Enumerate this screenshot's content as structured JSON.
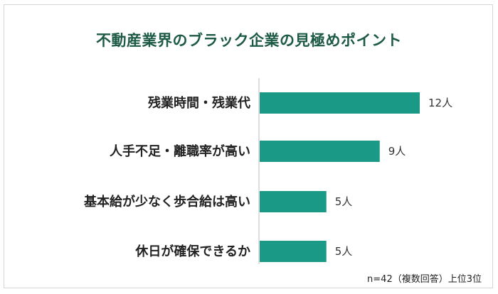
{
  "chart_data": {
    "type": "bar",
    "orientation": "horizontal",
    "title": "不動産業界のブラック企業の見極めポイント",
    "categories": [
      "残業時間・残業代",
      "人手不足・離職率が高い",
      "基本給が少なく歩合給は高い",
      "休日が確保できるか"
    ],
    "values": [
      12,
      9,
      5,
      5
    ],
    "value_labels": [
      "12人",
      "9人",
      "5人",
      "5人"
    ],
    "unit": "人",
    "xlim": [
      0,
      12
    ],
    "grid": false,
    "bar_color": "#1a9a86",
    "axis_color": "#bbbbbb",
    "note": "n=42（複数回答）上位3位"
  },
  "colors": {
    "title": "#1d5a45",
    "border": "#d6d6d6"
  }
}
